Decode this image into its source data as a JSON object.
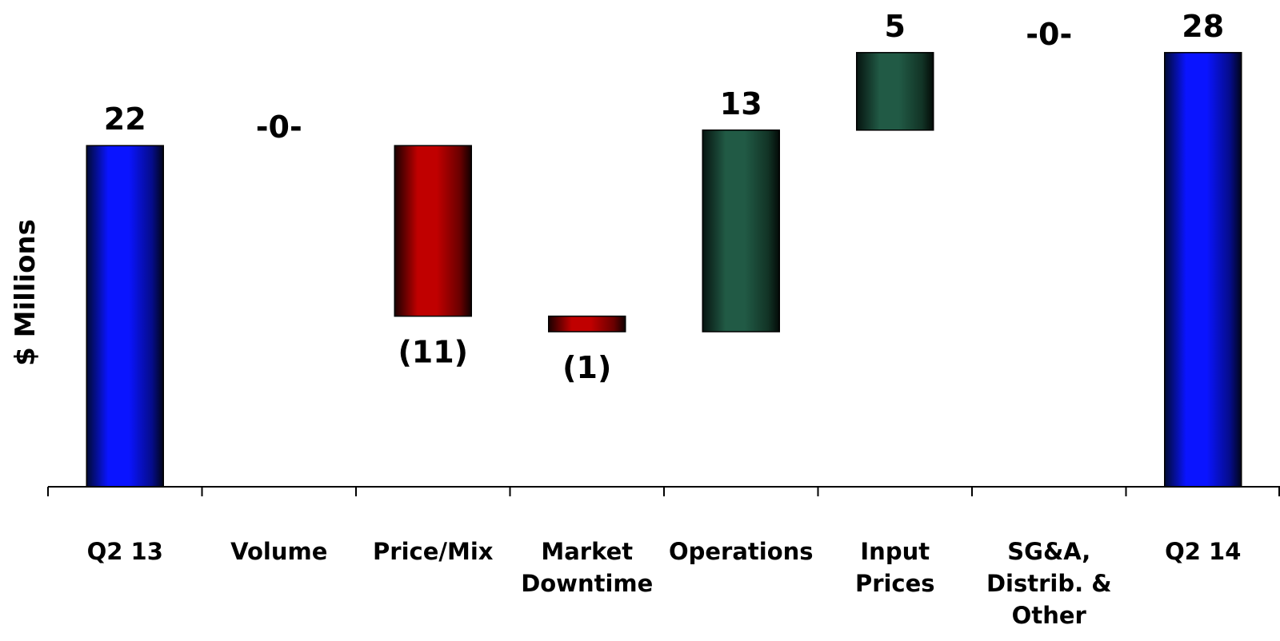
{
  "chart_data": {
    "type": "bar",
    "subtype": "waterfall",
    "ylabel": "$ Millions",
    "categories": [
      [
        "Q2 13"
      ],
      [
        "Volume"
      ],
      [
        "Price/Mix"
      ],
      [
        "Market",
        "Downtime"
      ],
      [
        "Operations"
      ],
      [
        "Input",
        "Prices"
      ],
      [
        "SG&A,",
        "Distrib. &",
        "Other"
      ],
      [
        "Q2 14"
      ]
    ],
    "values": [
      22,
      0,
      -11,
      -1,
      13,
      5,
      0,
      28
    ],
    "value_labels": [
      "22",
      "-0-",
      "(11)",
      "(1)",
      "13",
      "5",
      "-0-",
      "28"
    ],
    "bar_kinds": [
      "total",
      "change",
      "change",
      "change",
      "change",
      "change",
      "change",
      "total"
    ],
    "ylim": [
      0,
      30
    ],
    "grid": false,
    "legend": "none",
    "colors": {
      "total": "#0a14ff",
      "decrease": "#c00000",
      "increase": "#215a45"
    }
  }
}
